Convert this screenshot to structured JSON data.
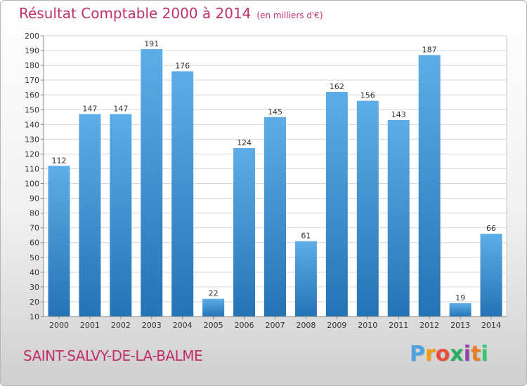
{
  "title": "Résultat Comptable 2000 à 2014",
  "unit": "(en milliers d'€)",
  "commune": "SAINT-SALVY-DE-LA-BALME",
  "logo": {
    "letters": [
      "P",
      "r",
      "o",
      "x",
      "i",
      "t",
      "i"
    ],
    "colors": [
      "#4aa3df",
      "#f39c12",
      "#e74c3c",
      "#27ae60",
      "#8e44ad",
      "#e67e22",
      "#2ecc71"
    ]
  },
  "colors": {
    "bar_light": "#5dade8",
    "bar_dark": "#2473b5",
    "title": "#c0306a",
    "grid": "#d6d6d6"
  },
  "chart_data": {
    "type": "bar",
    "title": "Résultat Comptable 2000 à 2014",
    "categories": [
      "2000",
      "2001",
      "2002",
      "2003",
      "2004",
      "2005",
      "2006",
      "2007",
      "2008",
      "2009",
      "2010",
      "2011",
      "2012",
      "2013",
      "2014"
    ],
    "values": [
      112,
      147,
      147,
      191,
      176,
      22,
      124,
      145,
      61,
      162,
      156,
      143,
      187,
      19,
      66
    ],
    "ylim": [
      10,
      200
    ],
    "yticks": [
      10,
      20,
      30,
      40,
      50,
      60,
      70,
      80,
      90,
      100,
      110,
      120,
      130,
      140,
      150,
      160,
      170,
      180,
      190,
      200
    ],
    "grid": true
  }
}
